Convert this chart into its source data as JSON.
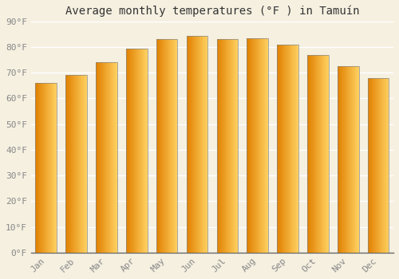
{
  "title": "Average monthly temperatures (°F ) in Tamuín",
  "months": [
    "Jan",
    "Feb",
    "Mar",
    "Apr",
    "May",
    "Jun",
    "Jul",
    "Aug",
    "Sep",
    "Oct",
    "Nov",
    "Dec"
  ],
  "values": [
    66,
    69,
    74,
    79.5,
    83,
    84.5,
    83,
    83.5,
    81,
    77,
    72.5,
    68
  ],
  "ylim": [
    0,
    90
  ],
  "yticks": [
    0,
    10,
    20,
    30,
    40,
    50,
    60,
    70,
    80,
    90
  ],
  "ytick_labels": [
    "0°F",
    "10°F",
    "20°F",
    "30°F",
    "40°F",
    "50°F",
    "60°F",
    "70°F",
    "80°F",
    "90°F"
  ],
  "background_color": "#f5f0e0",
  "grid_color": "#ffffff",
  "bar_color_left": "#E08000",
  "bar_color_right": "#FFD060",
  "bar_edge_color": "#888888",
  "title_fontsize": 10,
  "tick_fontsize": 8,
  "tick_color": "#888888",
  "font_family": "monospace",
  "bar_width": 0.7
}
